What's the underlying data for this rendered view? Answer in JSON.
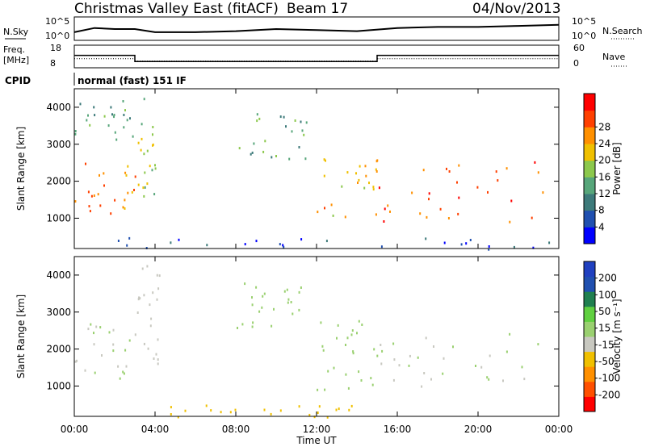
{
  "header": {
    "station": "Christmas Valley East (fitACF)",
    "beam": "Beam 17",
    "date": "04/Nov/2013"
  },
  "side_labels": {
    "nsky": "N.Sky",
    "nsearch": "N.Search",
    "freq_line1": "Freq.",
    "freq_line2": "[MHz]",
    "nave": "Nave",
    "cpid": "CPID",
    "cpid_value": "normal (fast) 151 IF"
  },
  "colors": {
    "power": [
      "#0000ff",
      "#2050b0",
      "#3d7a7a",
      "#57a67a",
      "#8cc84c",
      "#f0c000",
      "#ff9000",
      "#ff4000",
      "#ff0000"
    ],
    "velocity": [
      "#ff0000",
      "#ff5000",
      "#ff9000",
      "#f0c000",
      "#c8c8c0",
      "#9ad070",
      "#60d040",
      "#208050",
      "#2050b0",
      "#2040c0"
    ],
    "trace": "#000000"
  },
  "chart_data": [
    {
      "type": "line",
      "title": "N.Sky / N.Search",
      "yticks_left": [
        "10^5",
        "10^0"
      ],
      "yticks_right": [
        "10^5",
        "10^0"
      ],
      "series": [
        {
          "name": "N.Sky",
          "x": [
            0,
            1,
            2,
            3,
            4,
            6,
            8,
            10,
            12,
            14,
            16,
            18,
            20,
            22,
            24
          ],
          "values": [
            0.35,
            0.55,
            0.5,
            0.5,
            0.35,
            0.35,
            0.4,
            0.5,
            0.45,
            0.4,
            0.55,
            0.6,
            0.6,
            0.65,
            0.7
          ]
        }
      ]
    },
    {
      "type": "line",
      "title": "Freq. [MHz] / Nave",
      "yticks_left": [
        "18",
        "8"
      ],
      "yticks_right": [
        "60",
        "0"
      ],
      "series": [
        {
          "name": "Freq.",
          "x": [
            0,
            3,
            3,
            15,
            15,
            24
          ],
          "values": [
            13.5,
            13.5,
            10.8,
            10.8,
            13.5,
            13.5
          ]
        },
        {
          "name": "Nave",
          "x": [
            0,
            3,
            3,
            15,
            15,
            24
          ],
          "values": [
            24,
            24,
            18,
            18,
            24,
            24
          ]
        }
      ]
    },
    {
      "type": "heatmap",
      "xlabel": "",
      "ylabel": "Slant Range [km]",
      "ylim": [
        180,
        4500
      ],
      "xlim": [
        0,
        24
      ],
      "yticks": [
        "1000",
        "2000",
        "3000",
        "4000"
      ],
      "colorbar_label": "Power [dB]",
      "colorbar_ticks": [
        "4",
        "8",
        "12",
        "16",
        "20",
        "24",
        "28"
      ],
      "scatter_regions": [
        {
          "x": [
            0,
            3
          ],
          "y": [
            1000,
            2700
          ],
          "value": 24
        },
        {
          "x": [
            0,
            3
          ],
          "y": [
            3000,
            4200
          ],
          "value": 12
        },
        {
          "x": [
            3,
            4.2
          ],
          "y": [
            1600,
            4300
          ],
          "value": 16
        },
        {
          "x": [
            8,
            11.5
          ],
          "y": [
            2600,
            3900
          ],
          "value": 12
        },
        {
          "x": [
            12,
            15
          ],
          "y": [
            1000,
            3000
          ],
          "value": 20
        },
        {
          "x": [
            14.8,
            23.5
          ],
          "y": [
            900,
            2600
          ],
          "value": 26
        },
        {
          "x": [
            2,
            24
          ],
          "y": [
            180,
            500
          ],
          "value": 6
        }
      ]
    },
    {
      "type": "heatmap",
      "xlabel": "Time UT",
      "ylabel": "Slant Range [km]",
      "ylim": [
        180,
        4500
      ],
      "xlim": [
        0,
        24
      ],
      "yticks": [
        "1000",
        "2000",
        "3000",
        "4000"
      ],
      "xticks": [
        "00:00",
        "04:00",
        "08:00",
        "12:00",
        "16:00",
        "20:00",
        "00:00"
      ],
      "colorbar_label": "Velocity [m s⁻¹]",
      "colorbar_ticks": [
        "200",
        "100",
        "50",
        "15",
        "-15",
        "-50",
        "-100",
        "-200"
      ],
      "scatter_regions": [
        {
          "x": [
            0,
            3
          ],
          "y": [
            1200,
            2800
          ],
          "value": 0
        },
        {
          "x": [
            3,
            4.2
          ],
          "y": [
            1600,
            4300
          ],
          "value": -10
        },
        {
          "x": [
            8,
            11.5
          ],
          "y": [
            2600,
            3900
          ],
          "value": 10
        },
        {
          "x": [
            12,
            15
          ],
          "y": [
            900,
            3000
          ],
          "value": 30
        },
        {
          "x": [
            14.8,
            23.5
          ],
          "y": [
            900,
            2500
          ],
          "value": 0
        },
        {
          "x": [
            4,
            14
          ],
          "y": [
            180,
            500
          ],
          "value": -60
        }
      ]
    }
  ]
}
